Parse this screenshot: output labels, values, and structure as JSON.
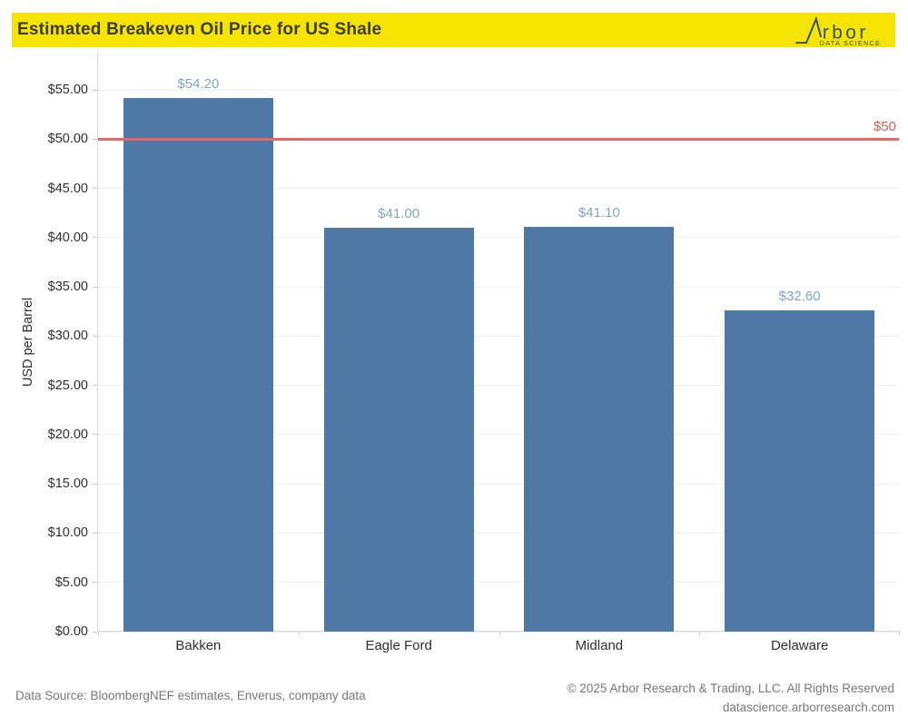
{
  "header": {
    "title": "Estimated Breakeven Oil Price for US Shale",
    "logo": {
      "brand": "rbor",
      "tagline": "DATA SCIENCE",
      "color": "#36536e"
    }
  },
  "chart_data": {
    "type": "bar",
    "title": "Estimated Breakeven Oil Price for US Shale",
    "categories": [
      "Bakken",
      "Eagle Ford",
      "Midland",
      "Delaware"
    ],
    "values": [
      54.2,
      41.0,
      41.1,
      32.6
    ],
    "data_labels": [
      "$54.20",
      "$41.00",
      "$41.10",
      "$32.60"
    ],
    "xlabel": "",
    "ylabel": "USD per Barrel",
    "ylim": [
      0,
      58.8
    ],
    "yticks": [
      0,
      5,
      10,
      15,
      20,
      25,
      30,
      35,
      40,
      45,
      50,
      55
    ],
    "ytick_labels": [
      "$0.00",
      "$5.00",
      "$10.00",
      "$15.00",
      "$20.00",
      "$25.00",
      "$30.00",
      "$35.00",
      "$40.00",
      "$45.00",
      "$50.00",
      "$55.00"
    ],
    "grid": true,
    "legend": false,
    "bar_color": "#4e79a7",
    "value_label_color": "#84a3c4",
    "reference_line": {
      "value": 50,
      "label": "$50",
      "color": "#e0696b",
      "label_color": "#e15759"
    }
  },
  "footer": {
    "source": "Data Source: BloombergNEF estimates, Enverus, company data",
    "copyright": "© 2025 Arbor Research & Trading, LLC. All Rights Reserved",
    "website": "datascience.arborresearch.com"
  }
}
